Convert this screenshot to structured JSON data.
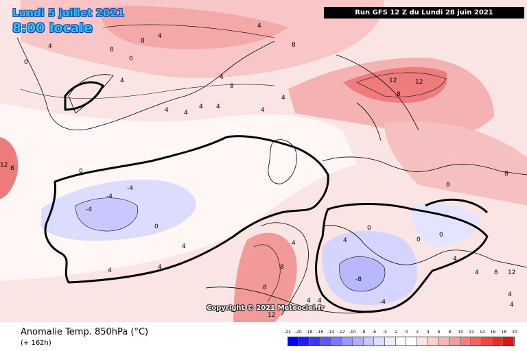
{
  "header": {
    "date_line": "Lundi 5 juillet 2021",
    "time_line": "8:00 locale",
    "run": "Run GFS 12 Z du Lundi 28 juin 2021"
  },
  "copyright": "Copyright © 2021 Meteociel.fr",
  "footer": {
    "field_title": "Anomalie Temp. 850hPa (°C)",
    "lead_time": "(+ 162h)"
  },
  "legend": {
    "ticks": [
      "-22",
      "-20",
      "-18",
      "-16",
      "-14",
      "-12",
      "-10",
      "-8",
      "-6",
      "-4",
      "-2",
      "0",
      "2",
      "4",
      "6",
      "8",
      "10",
      "12",
      "14",
      "16",
      "18",
      "20"
    ],
    "colors": [
      "#0000ff",
      "#1c1cff",
      "#3838ff",
      "#5858ff",
      "#7878ff",
      "#9898ff",
      "#b0b0ff",
      "#c8c8ff",
      "#dcdcff",
      "#ececff",
      "#ffffff",
      "#ffffff",
      "#fde6e6",
      "#fbd0d0",
      "#f8b6b6",
      "#f59c9c",
      "#f28080",
      "#ef6464",
      "#ec4848",
      "#e82c2c",
      "#e01414"
    ]
  },
  "map_labels": [
    {
      "text": "0"
    },
    {
      "text": "4"
    },
    {
      "text": "8"
    },
    {
      "text": "4"
    },
    {
      "text": "8"
    },
    {
      "text": "4"
    },
    {
      "text": "0"
    },
    {
      "text": "4"
    },
    {
      "text": "8"
    },
    {
      "text": "4"
    },
    {
      "text": "4"
    },
    {
      "text": "0"
    },
    {
      "text": "4"
    },
    {
      "text": "4"
    },
    {
      "text": "4"
    },
    {
      "text": "4"
    },
    {
      "text": "4"
    },
    {
      "text": "8"
    },
    {
      "text": "12"
    },
    {
      "text": "12"
    },
    {
      "text": "8"
    },
    {
      "text": "12"
    },
    {
      "text": "8"
    },
    {
      "text": "0"
    },
    {
      "text": "-4"
    },
    {
      "text": "-4"
    },
    {
      "text": "-4"
    },
    {
      "text": "0"
    },
    {
      "text": "4"
    },
    {
      "text": "4"
    },
    {
      "text": "4"
    },
    {
      "text": "4"
    },
    {
      "text": "8"
    },
    {
      "text": "8"
    },
    {
      "text": "12"
    },
    {
      "text": "-8"
    },
    {
      "text": "-4"
    },
    {
      "text": "0"
    },
    {
      "text": "4"
    },
    {
      "text": "4"
    },
    {
      "text": "4"
    },
    {
      "text": "4"
    },
    {
      "text": "8"
    },
    {
      "text": "12"
    },
    {
      "text": "8"
    },
    {
      "text": "4"
    },
    {
      "text": "4"
    },
    {
      "text": "0"
    },
    {
      "text": "4"
    },
    {
      "text": "8"
    }
  ]
}
